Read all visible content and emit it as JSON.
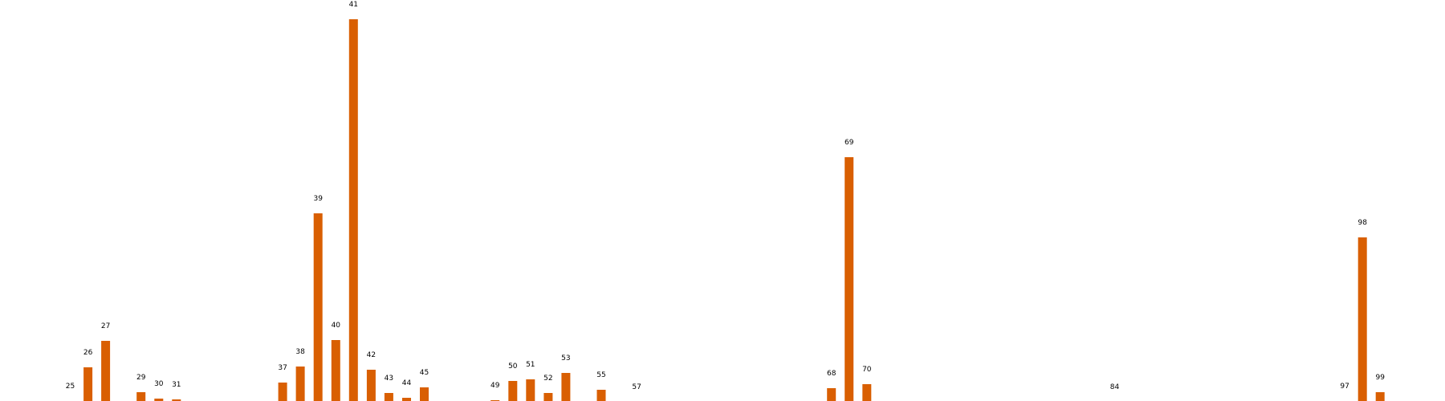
{
  "chart_data": {
    "type": "bar",
    "title": "",
    "xlabel": "",
    "ylabel": "",
    "color": "#d95f02",
    "grid": false,
    "legend": "none",
    "xlim": [
      21,
      102
    ],
    "ylim": [
      0,
      478
    ],
    "categories": [
      25,
      26,
      27,
      29,
      30,
      31,
      37,
      38,
      39,
      40,
      41,
      42,
      43,
      44,
      45,
      49,
      50,
      51,
      52,
      53,
      55,
      57,
      68,
      69,
      70,
      84,
      97,
      98,
      99
    ],
    "values": [
      2,
      44,
      77,
      13,
      5,
      4,
      25,
      45,
      236,
      78,
      478,
      41,
      12,
      6,
      19,
      3,
      27,
      29,
      12,
      37,
      16,
      1,
      18,
      306,
      23,
      1,
      2,
      206,
      13
    ]
  }
}
